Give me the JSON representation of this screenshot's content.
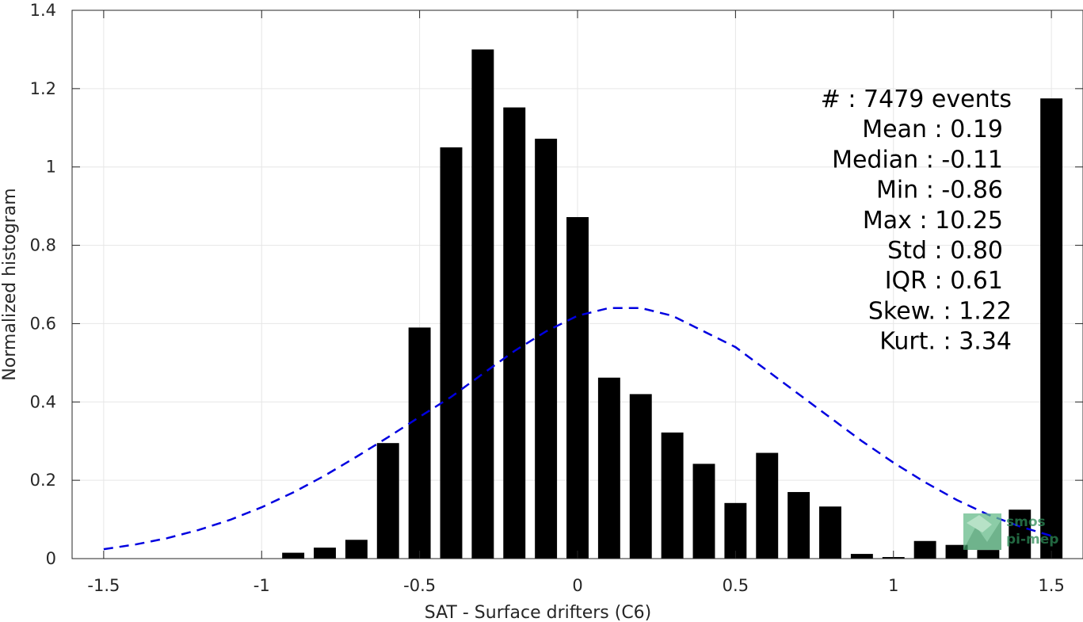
{
  "chart_data": {
    "type": "bar",
    "xlabel": "SAT - Surface drifters (C6)",
    "ylabel": "Normalized histogram",
    "xlim": [
      -1.6,
      1.6
    ],
    "ylim": [
      0,
      1.4
    ],
    "xticks": [
      -1.5,
      -1,
      -0.5,
      0,
      0.5,
      1,
      1.5
    ],
    "xtick_labels": [
      "-1.5",
      "-1",
      "-0.5",
      "0",
      "0.5",
      "1",
      "1.5"
    ],
    "yticks": [
      0,
      0.2,
      0.4,
      0.6,
      0.8,
      1,
      1.2,
      1.4
    ],
    "ytick_labels": [
      "0",
      "0.2",
      "0.4",
      "0.6",
      "0.8",
      "1",
      "1.2",
      "1.4"
    ],
    "grid": true,
    "bar_color": "#000000",
    "bar_width": 0.07,
    "series": [
      {
        "type": "bar",
        "x": [
          -0.9,
          -0.8,
          -0.7,
          -0.6,
          -0.5,
          -0.4,
          -0.3,
          -0.2,
          -0.1,
          0.0,
          0.1,
          0.2,
          0.3,
          0.4,
          0.5,
          0.6,
          0.7,
          0.8,
          0.9,
          1.0,
          1.1,
          1.2,
          1.3,
          1.4,
          1.5
        ],
        "values": [
          0.015,
          0.028,
          0.048,
          0.295,
          0.59,
          1.05,
          1.3,
          1.152,
          1.072,
          0.872,
          0.462,
          0.42,
          0.322,
          0.242,
          0.142,
          0.27,
          0.17,
          0.133,
          0.012,
          0.004,
          0.045,
          0.035,
          0.022,
          0.125,
          1.175
        ]
      },
      {
        "type": "line",
        "style": "dashed",
        "color": "#0000e0",
        "x": [
          -1.5,
          -1.4,
          -1.3,
          -1.2,
          -1.1,
          -1.0,
          -0.9,
          -0.8,
          -0.7,
          -0.6,
          -0.5,
          -0.4,
          -0.3,
          -0.2,
          -0.1,
          0.0,
          0.1,
          0.2,
          0.3,
          0.4,
          0.5,
          0.6,
          0.7,
          0.8,
          0.9,
          1.0,
          1.1,
          1.2,
          1.3,
          1.4,
          1.5
        ],
        "values": [
          0.024,
          0.036,
          0.052,
          0.073,
          0.099,
          0.131,
          0.169,
          0.212,
          0.26,
          0.31,
          0.362,
          0.413,
          0.472,
          0.53,
          0.58,
          0.62,
          0.64,
          0.64,
          0.62,
          0.58,
          0.54,
          0.48,
          0.42,
          0.36,
          0.3,
          0.245,
          0.195,
          0.15,
          0.112,
          0.082,
          0.058
        ]
      }
    ],
    "stats_box": {
      "placement": "top-right",
      "lines": [
        "#  : 7479 events",
        "Mean : 0.19",
        "Median : -0.11",
        "Min : -0.86",
        "Max : 10.25",
        "Std : 0.80",
        "IQR : 0.61",
        "Skew. : 1.22",
        "Kurt. : 3.34"
      ]
    },
    "logo": {
      "text_lines": [
        "smos",
        "pi-mep"
      ],
      "color": "#2e8b57",
      "placement": "bottom-right"
    }
  }
}
